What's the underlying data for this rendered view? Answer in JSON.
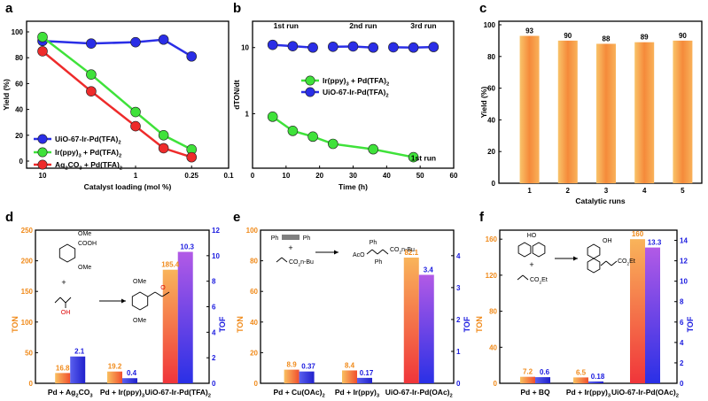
{
  "colors": {
    "blue": "#2a2ee6",
    "green": "#3fe23a",
    "red": "#ee2b2b",
    "orange": "#f7a14a",
    "tof_blue": "#1a1adf",
    "ton_label": "#f08a1a",
    "tof_label": "#1a1adf"
  },
  "chart_data": [
    {
      "panel": "a",
      "type": "line",
      "xscale": "log-reversed",
      "xlabel": "Catalyst loading (mol %)",
      "ylabel": "Yield (%)",
      "xlim": [
        10,
        0.1
      ],
      "ylim": [
        -5,
        100
      ],
      "xticks": [
        "10",
        "1",
        "0.25",
        "0.1"
      ],
      "yticks": [
        "0",
        "20",
        "40",
        "60",
        "80",
        "100"
      ],
      "series": [
        {
          "name": "UiO-67-Ir-Pd(TFA)",
          "sub": "2",
          "color": "#2a2ee6",
          "x": [
            10,
            3,
            1,
            0.5,
            0.25
          ],
          "y": [
            93,
            91,
            92,
            94,
            81
          ]
        },
        {
          "name": "Ir(ppy)",
          "sub": "3",
          "suffix": " + Pd(TFA)",
          "sub2": "2",
          "color": "#3fe23a",
          "x": [
            10,
            3,
            1,
            0.5,
            0.25
          ],
          "y": [
            96,
            67,
            38,
            20,
            9
          ]
        },
        {
          "name": "Ag",
          "sub": "2",
          "suffix": "CO",
          "sub2": "3",
          "suffix2": " + Pd(TFA)",
          "sub3": "2",
          "color": "#ee2b2b",
          "x": [
            10,
            3,
            1,
            0.5,
            0.25
          ],
          "y": [
            85,
            54,
            27,
            10,
            3
          ]
        }
      ]
    },
    {
      "panel": "b",
      "type": "line",
      "xlabel": "Time (h)",
      "ylabel": "dTON/dt",
      "yscale": "log",
      "xlim": [
        0,
        60
      ],
      "xticks": [
        "0",
        "10",
        "20",
        "30",
        "40",
        "50",
        "60"
      ],
      "yticks": [
        "1",
        "10"
      ],
      "run_labels": [
        "1st run",
        "2nd run",
        "3rd run"
      ],
      "annotation": "1st run",
      "series": [
        {
          "name": "Ir(ppy)",
          "sub": "3",
          "suffix": " + Pd(TFA)",
          "sub2": "2",
          "color": "#3fe23a",
          "x": [
            6,
            12,
            18,
            24,
            36,
            48
          ],
          "y": [
            0.9,
            0.55,
            0.45,
            0.35,
            0.29,
            0.22
          ]
        },
        {
          "name": "UiO-67-Ir-Pd(TFA)",
          "sub": "2",
          "color": "#2a2ee6",
          "x": [
            6,
            12,
            18,
            24,
            30,
            36,
            42,
            48,
            54
          ],
          "y": [
            11,
            10.5,
            10,
            10.3,
            10.4,
            10,
            10.1,
            10,
            10.2
          ]
        }
      ]
    },
    {
      "panel": "c",
      "type": "bar",
      "xlabel": "Catalytic runs",
      "ylabel": "Yield (%)",
      "ylim": [
        0,
        100
      ],
      "yticks": [
        "0",
        "20",
        "40",
        "60",
        "80",
        "100"
      ],
      "categories": [
        "1",
        "2",
        "3",
        "4",
        "5"
      ],
      "values": [
        93,
        90,
        88,
        89,
        90
      ]
    },
    {
      "panel": "d",
      "type": "bar",
      "ylabel_left": "TON",
      "ylabel_right": "TOF",
      "ylim_left": [
        0,
        250
      ],
      "ylim_right": [
        0,
        12
      ],
      "yticks_left": [
        "0",
        "50",
        "100",
        "150",
        "200",
        "250"
      ],
      "yticks_right": [
        "0",
        "2",
        "4",
        "6",
        "8",
        "10",
        "12"
      ],
      "categories": [
        {
          "t": "Pd + Ag",
          "s": "2",
          "t2": "CO",
          "s2": "3"
        },
        {
          "t": "Pd + Ir(ppy)",
          "s": "3"
        },
        {
          "t": "UiO-67-Ir-Pd(TFA)",
          "s": "2"
        }
      ],
      "ton": [
        16.8,
        19.2,
        185.4
      ],
      "tof": [
        2.1,
        0.4,
        10.3
      ],
      "ton_labels": [
        "16.8",
        "19.2",
        "185.4"
      ],
      "tof_labels": [
        "2.1",
        "0.4",
        "10.3"
      ],
      "scheme": {
        "cooh": "COOH",
        "ome1": "OMe",
        "ome2": "OMe",
        "plus": "+",
        "oh": "OH",
        "p_ome1": "OMe",
        "p_ome2": "OMe",
        "p_o": "O"
      }
    },
    {
      "panel": "e",
      "type": "bar",
      "ylabel_left": "TON",
      "ylabel_right": "TOF",
      "ylim_left": [
        0,
        100
      ],
      "ylim_right": [
        0,
        4.8
      ],
      "yticks_left": [
        "0",
        "20",
        "40",
        "60",
        "80",
        "100"
      ],
      "yticks_right": [
        "0",
        "1",
        "2",
        "3",
        "4"
      ],
      "categories": [
        {
          "t": "Pd + Cu(OAc)",
          "s": "2"
        },
        {
          "t": "Pd + Ir(ppy)",
          "s": "3"
        },
        {
          "t": "UiO-67-Ir-Pd(OAc)",
          "s": "2"
        }
      ],
      "ton": [
        8.9,
        8.4,
        82.1
      ],
      "tof": [
        0.37,
        0.17,
        3.4
      ],
      "ton_labels": [
        "8.9",
        "8.4",
        "82.1"
      ],
      "tof_labels": [
        "0.37",
        "0.17",
        "3.4"
      ],
      "scheme": {
        "ph1": "Ph",
        "ph2": "Ph",
        "plus": "+",
        "ester": "CO",
        "ester_sub": "2",
        "ester_tail": "n-Bu",
        "p_ph1": "Ph",
        "p_ph2": "Ph",
        "p_aco": "AcO",
        "p_ester": "CO",
        "p_ester_sub": "2",
        "p_ester_tail": "n-Bu"
      }
    },
    {
      "panel": "f",
      "type": "bar",
      "ylabel_left": "TON",
      "ylabel_right": "TOF",
      "ylim_left": [
        0,
        170
      ],
      "ylim_right": [
        0,
        15
      ],
      "yticks_left": [
        "0",
        "40",
        "80",
        "120",
        "160"
      ],
      "yticks_right": [
        "0",
        "2",
        "4",
        "6",
        "8",
        "10",
        "12",
        "14"
      ],
      "categories": [
        {
          "t": "Pd + BQ"
        },
        {
          "t": "Pd + Ir(ppy)",
          "s": "3"
        },
        {
          "t": "UiO-67-Ir-Pd(OAc)",
          "s": "2"
        }
      ],
      "ton": [
        7.2,
        6.5,
        160
      ],
      "tof": [
        0.6,
        0.18,
        13.3
      ],
      "ton_labels": [
        "7.2",
        "6.5",
        "160"
      ],
      "tof_labels": [
        "0.6",
        "0.18",
        "13.3"
      ],
      "scheme": {
        "ho": "HO",
        "plus": "+",
        "ester": "CO",
        "ester_sub": "2",
        "ester_tail": "Et",
        "p_oh": "OH",
        "p_ester": "CO",
        "p_ester_sub": "2",
        "p_ester_tail": "Et"
      }
    }
  ],
  "panel_letters": [
    "a",
    "b",
    "c",
    "d",
    "e",
    "f"
  ]
}
